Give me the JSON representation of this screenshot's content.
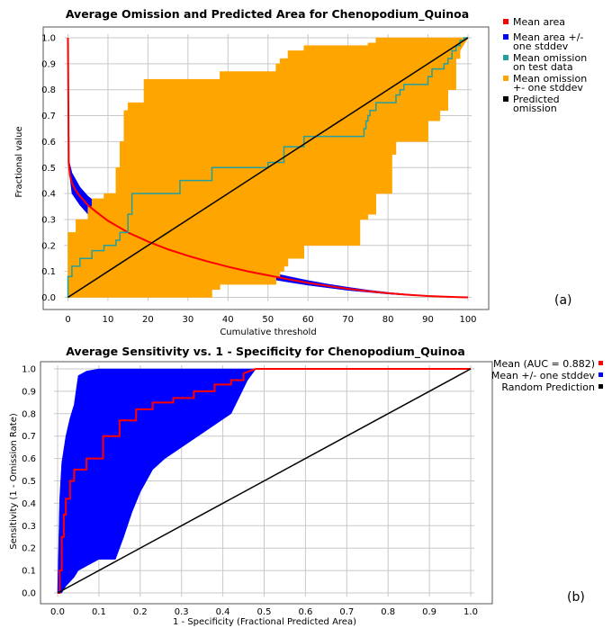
{
  "chart_data": [
    {
      "type": "line",
      "title": "Average Omission and Predicted Area for Chenopodium_Quinoa",
      "xlabel": "Cumulative threshold",
      "ylabel": "Fractional value",
      "panel_label": "(a)",
      "xlim": [
        0,
        100
      ],
      "ylim": [
        0,
        1
      ],
      "xticks": [
        "0",
        "10",
        "20",
        "30",
        "40",
        "50",
        "60",
        "70",
        "80",
        "90",
        "100"
      ],
      "yticks": [
        "0.0",
        "0.1",
        "0.2",
        "0.3",
        "0.4",
        "0.5",
        "0.6",
        "0.7",
        "0.8",
        "0.9",
        "1.0"
      ],
      "grid": true,
      "legend_position": "right",
      "legend": [
        {
          "label": [
            "Mean area"
          ],
          "color": "#ff0000"
        },
        {
          "label": [
            "Mean area +/-",
            "one stddev"
          ],
          "color": "#0000ff"
        },
        {
          "label": [
            "Mean omission",
            "on test data"
          ],
          "color": "#20a0a0"
        },
        {
          "label": [
            "Mean omission",
            "+- one stddev"
          ],
          "color": "#ffa500"
        },
        {
          "label": [
            "Predicted",
            "omission"
          ],
          "color": "#000000"
        }
      ],
      "series": [
        {
          "name": "Mean area",
          "color": "#ff0000",
          "x": [
            0,
            0.2,
            0.5,
            1,
            2,
            3,
            5,
            7,
            10,
            15,
            20,
            25,
            30,
            35,
            40,
            45,
            50,
            55,
            60,
            65,
            70,
            75,
            80,
            85,
            90,
            95,
            100
          ],
          "y": [
            1.0,
            0.52,
            0.47,
            0.44,
            0.41,
            0.39,
            0.355,
            0.33,
            0.295,
            0.25,
            0.215,
            0.185,
            0.16,
            0.138,
            0.118,
            0.1,
            0.085,
            0.07,
            0.056,
            0.044,
            0.033,
            0.024,
            0.016,
            0.01,
            0.005,
            0.002,
            0.0
          ]
        },
        {
          "name": "Mean area +/- one stddev",
          "color": "#0000ff",
          "x": [
            0.2,
            1,
            3,
            5,
            10,
            15,
            20,
            25,
            30,
            35,
            40,
            45,
            50,
            55,
            60,
            65,
            70,
            75,
            80,
            85,
            90,
            95,
            100
          ],
          "upper": [
            0.53,
            0.48,
            0.425,
            0.39,
            0.33,
            0.282,
            0.245,
            0.212,
            0.184,
            0.158,
            0.136,
            0.116,
            0.098,
            0.081,
            0.065,
            0.051,
            0.039,
            0.028,
            0.019,
            0.012,
            0.006,
            0.003,
            0.0
          ],
          "lower": [
            0.5,
            0.4,
            0.355,
            0.32,
            0.26,
            0.218,
            0.185,
            0.158,
            0.136,
            0.118,
            0.1,
            0.084,
            0.072,
            0.059,
            0.047,
            0.037,
            0.027,
            0.02,
            0.013,
            0.008,
            0.004,
            0.001,
            0.0
          ]
        },
        {
          "name": "Mean omission on test data",
          "color": "#20a0a0",
          "x": [
            0,
            0,
            1,
            1,
            3,
            3,
            6,
            6,
            9,
            9,
            12,
            12,
            13,
            13,
            15,
            15,
            16,
            16,
            28,
            28,
            36,
            36,
            50,
            50,
            54,
            54,
            59,
            59,
            74,
            74,
            74.5,
            74.5,
            75,
            75,
            75.5,
            75.5,
            77,
            77,
            82,
            82,
            83,
            83,
            84,
            84,
            90,
            90,
            91,
            91,
            94,
            94,
            95,
            95,
            96,
            96,
            97,
            97,
            98,
            98,
            99,
            99,
            100
          ],
          "y": [
            0,
            0.08,
            0.08,
            0.12,
            0.12,
            0.15,
            0.15,
            0.18,
            0.18,
            0.2,
            0.2,
            0.22,
            0.22,
            0.25,
            0.25,
            0.32,
            0.32,
            0.4,
            0.4,
            0.45,
            0.45,
            0.5,
            0.5,
            0.52,
            0.52,
            0.58,
            0.58,
            0.62,
            0.62,
            0.65,
            0.65,
            0.68,
            0.68,
            0.7,
            0.7,
            0.72,
            0.72,
            0.75,
            0.75,
            0.78,
            0.78,
            0.8,
            0.8,
            0.82,
            0.82,
            0.85,
            0.85,
            0.88,
            0.88,
            0.9,
            0.9,
            0.92,
            0.92,
            0.95,
            0.95,
            0.97,
            0.97,
            0.99,
            0.99,
            1.0,
            1.0
          ]
        },
        {
          "name": "Mean omission +- one stddev",
          "color": "#ffa500",
          "x": [
            0,
            0,
            2,
            2,
            5,
            5,
            6,
            6,
            9,
            9,
            12,
            12,
            13,
            13,
            14,
            14,
            15,
            15,
            19,
            19,
            28,
            28,
            36,
            36,
            38,
            38,
            52,
            52,
            53,
            53,
            54,
            54,
            55,
            55,
            59,
            59,
            61,
            61,
            73,
            73,
            74,
            74,
            75,
            75,
            77,
            77,
            81,
            81,
            82,
            82,
            84,
            84,
            90,
            90,
            93,
            93,
            95,
            95,
            97,
            97,
            98,
            98,
            100
          ],
          "upper": [
            0.25,
            0.25,
            0.25,
            0.3,
            0.3,
            0.35,
            0.35,
            0.38,
            0.38,
            0.4,
            0.4,
            0.5,
            0.5,
            0.6,
            0.6,
            0.72,
            0.72,
            0.75,
            0.75,
            0.84,
            0.84,
            0.84,
            0.84,
            0.84,
            0.84,
            0.87,
            0.87,
            0.9,
            0.9,
            0.92,
            0.92,
            0.92,
            0.92,
            0.95,
            0.95,
            0.97,
            0.97,
            0.97,
            0.97,
            0.97,
            0.97,
            0.97,
            0.97,
            0.98,
            0.98,
            1.0,
            1.0,
            1.0,
            1.0,
            1.0,
            1.0,
            1.0,
            1.0,
            1.0,
            1.0,
            1.0,
            1.0,
            1.0,
            1.0,
            1.0,
            1.0,
            1.0,
            1.0
          ],
          "lower": [
            0,
            0,
            0,
            0,
            0,
            0,
            0,
            0,
            0,
            0,
            0,
            0,
            0,
            0,
            0,
            0,
            0,
            0,
            0,
            0,
            0,
            0,
            0,
            0.03,
            0.03,
            0.05,
            0.05,
            0.08,
            0.08,
            0.1,
            0.1,
            0.12,
            0.12,
            0.15,
            0.15,
            0.2,
            0.2,
            0.2,
            0.2,
            0.3,
            0.3,
            0.3,
            0.3,
            0.32,
            0.32,
            0.4,
            0.4,
            0.55,
            0.55,
            0.6,
            0.6,
            0.6,
            0.6,
            0.68,
            0.68,
            0.72,
            0.72,
            0.8,
            0.8,
            0.92,
            0.92,
            0.95,
            1.0
          ]
        },
        {
          "name": "Predicted omission",
          "color": "#000000",
          "x": [
            0,
            100
          ],
          "y": [
            0,
            1.0
          ]
        }
      ]
    },
    {
      "type": "line",
      "title": "Average Sensitivity vs. 1 - Specificity for Chenopodium_Quinoa",
      "xlabel": "1 - Specificity (Fractional Predicted Area)",
      "ylabel": "Sensitivity (1 - Omission Rate)",
      "panel_label": "(b)",
      "xlim": [
        0,
        1
      ],
      "ylim": [
        0,
        1
      ],
      "xticks": [
        "0.0",
        "0.1",
        "0.2",
        "0.3",
        "0.4",
        "0.5",
        "0.6",
        "0.7",
        "0.8",
        "0.9",
        "1.0"
      ],
      "yticks": [
        "0.0",
        "0.1",
        "0.2",
        "0.3",
        "0.4",
        "0.5",
        "0.6",
        "0.7",
        "0.8",
        "0.9",
        "1.0"
      ],
      "grid": true,
      "legend_position": "right",
      "legend": [
        {
          "label": "Mean (AUC = 0.882)",
          "color": "#ff0000"
        },
        {
          "label": "Mean +/- one stddev",
          "color": "#0000ff"
        },
        {
          "label": "Random Prediction",
          "color": "#000000"
        }
      ],
      "series": [
        {
          "name": "Mean (AUC = 0.882)",
          "color": "#ff0000",
          "x": [
            0,
            0.005,
            0.005,
            0.01,
            0.01,
            0.015,
            0.015,
            0.02,
            0.02,
            0.03,
            0.03,
            0.04,
            0.04,
            0.07,
            0.07,
            0.11,
            0.11,
            0.15,
            0.15,
            0.19,
            0.19,
            0.23,
            0.23,
            0.28,
            0.28,
            0.33,
            0.33,
            0.38,
            0.38,
            0.42,
            0.42,
            0.45,
            0.45,
            0.48,
            1.0
          ],
          "y": [
            0,
            0.0,
            0.1,
            0.1,
            0.25,
            0.25,
            0.35,
            0.35,
            0.42,
            0.42,
            0.5,
            0.5,
            0.55,
            0.55,
            0.6,
            0.6,
            0.7,
            0.7,
            0.77,
            0.77,
            0.82,
            0.82,
            0.85,
            0.85,
            0.87,
            0.87,
            0.9,
            0.9,
            0.93,
            0.93,
            0.95,
            0.95,
            0.98,
            1.0,
            1.0
          ]
        },
        {
          "name": "Mean +/- one stddev",
          "color": "#0000ff",
          "x": [
            0,
            0.005,
            0.01,
            0.02,
            0.03,
            0.04,
            0.05,
            0.07,
            0.1,
            0.12,
            0.14,
            0.16,
            0.18,
            0.2,
            0.23,
            0.26,
            0.3,
            0.34,
            0.38,
            0.42,
            0.46,
            0.48,
            1.0
          ],
          "upper": [
            0,
            0.42,
            0.58,
            0.7,
            0.78,
            0.84,
            0.97,
            0.99,
            1.0,
            1.0,
            1.0,
            1.0,
            1.0,
            1.0,
            1.0,
            1.0,
            1.0,
            1.0,
            1.0,
            1.0,
            1.0,
            1.0,
            1.0
          ],
          "lower": [
            0,
            0.0,
            0.0,
            0.03,
            0.05,
            0.07,
            0.1,
            0.12,
            0.15,
            0.15,
            0.15,
            0.25,
            0.36,
            0.45,
            0.55,
            0.6,
            0.65,
            0.7,
            0.75,
            0.8,
            0.95,
            1.0,
            1.0
          ]
        },
        {
          "name": "Random Prediction",
          "color": "#000000",
          "x": [
            0,
            1
          ],
          "y": [
            0,
            1
          ]
        }
      ]
    }
  ]
}
